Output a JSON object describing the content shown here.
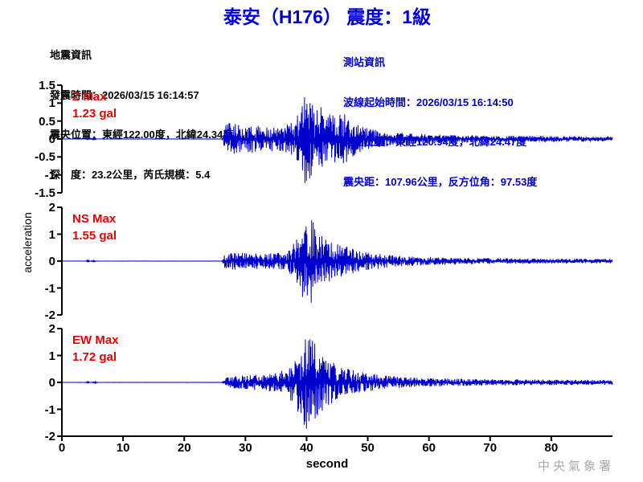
{
  "title": "泰安（H176） 震度：1級",
  "earthquake_info": {
    "heading": "地震資訊",
    "lines": [
      "發震時間：2026/03/15 16:14:57",
      "震央位置：東經122.00度，北緯24.34度",
      "深　度：23.2公里，芮氏規模：5.4"
    ]
  },
  "station_info": {
    "heading": "測站資訊",
    "lines": [
      "波線起始時間：2026/03/15 16:14:50",
      "測站位置：東經120.94度，北緯24.47度",
      "震央距：107.96公里，反方位角：97.53度"
    ]
  },
  "watermark": "中央氣象署",
  "colors": {
    "title_blue": "#0000dd",
    "info_blue": "#0000cc",
    "max_red": "#ee0000",
    "trace_blue": "#0000cc",
    "axis_black": "#000000",
    "watermark_gray": "#a9a9a9"
  },
  "chart_data": {
    "type": "line",
    "title": "泰安（H176） 震度：1級",
    "xlabel": "second",
    "ylabel": "acceleration",
    "x_range": [
      0,
      90
    ],
    "x_ticks": [
      "0",
      "10",
      "20",
      "30",
      "40",
      "50",
      "60",
      "70",
      "80"
    ],
    "grid": false,
    "trace_color": "#0000cc",
    "subplots": [
      {
        "component": "Z",
        "max_label": "Z Max",
        "max_value": "1.23 gal",
        "peak_gal": 1.23,
        "ylim": [
          -1.5,
          1.5
        ],
        "y_ticks": [
          "1.5",
          "1",
          "0.5",
          "0",
          "-0.5",
          "-1",
          "-1.5"
        ],
        "p_onset_s": 26.5,
        "s_peak_s": 39.8,
        "envelope": [
          [
            0,
            0.001
          ],
          [
            3.9,
            0.001
          ],
          [
            4.2,
            0.03
          ],
          [
            4.5,
            0.002
          ],
          [
            5.4,
            0.022
          ],
          [
            5.7,
            0.001
          ],
          [
            26.2,
            0.003
          ],
          [
            26.6,
            0.28
          ],
          [
            27.5,
            0.36
          ],
          [
            29,
            0.33
          ],
          [
            31,
            0.3
          ],
          [
            33.5,
            0.28
          ],
          [
            36,
            0.27
          ],
          [
            38,
            0.4
          ],
          [
            39,
            0.75
          ],
          [
            39.8,
            1.0
          ],
          [
            40.6,
            0.85
          ],
          [
            41.5,
            0.62
          ],
          [
            42.3,
            0.72
          ],
          [
            43.5,
            0.55
          ],
          [
            45,
            0.5
          ],
          [
            46,
            0.58
          ],
          [
            47,
            0.42
          ],
          [
            48.5,
            0.3
          ],
          [
            50,
            0.24
          ],
          [
            52,
            0.18
          ],
          [
            54,
            0.15
          ],
          [
            57,
            0.12
          ],
          [
            60,
            0.1
          ],
          [
            64,
            0.09
          ],
          [
            68,
            0.08
          ],
          [
            72,
            0.07
          ],
          [
            78,
            0.065
          ],
          [
            84,
            0.06
          ],
          [
            90,
            0.055
          ]
        ]
      },
      {
        "component": "NS",
        "max_label": "NS Max",
        "max_value": "1.55 gal",
        "peak_gal": 1.55,
        "ylim": [
          -2,
          2
        ],
        "y_ticks": [
          "2",
          "1",
          "0",
          "-1",
          "-2"
        ],
        "p_onset_s": 26.5,
        "s_peak_s": 40.1,
        "envelope": [
          [
            0,
            0.001
          ],
          [
            3.9,
            0.001
          ],
          [
            4.2,
            0.022
          ],
          [
            4.6,
            0.002
          ],
          [
            5.4,
            0.018
          ],
          [
            5.8,
            0.001
          ],
          [
            26.2,
            0.003
          ],
          [
            26.6,
            0.16
          ],
          [
            28,
            0.2
          ],
          [
            30,
            0.19
          ],
          [
            32.5,
            0.17
          ],
          [
            35,
            0.18
          ],
          [
            37,
            0.25
          ],
          [
            38.3,
            0.55
          ],
          [
            39.2,
            0.85
          ],
          [
            40.1,
            1.0
          ],
          [
            41,
            0.9
          ],
          [
            41.8,
            0.65
          ],
          [
            42.8,
            0.55
          ],
          [
            44,
            0.45
          ],
          [
            45.5,
            0.38
          ],
          [
            47,
            0.3
          ],
          [
            48.5,
            0.24
          ],
          [
            50,
            0.2
          ],
          [
            52.5,
            0.15
          ],
          [
            55,
            0.12
          ],
          [
            58,
            0.1
          ],
          [
            62,
            0.085
          ],
          [
            66,
            0.075
          ],
          [
            70,
            0.065
          ],
          [
            75,
            0.06
          ],
          [
            80,
            0.055
          ],
          [
            85,
            0.05
          ],
          [
            90,
            0.05
          ]
        ]
      },
      {
        "component": "EW",
        "max_label": "EW Max",
        "max_value": "1.72 gal",
        "peak_gal": 1.72,
        "ylim": [
          -2,
          2
        ],
        "y_ticks": [
          "2",
          "1",
          "0",
          "-1",
          "-2"
        ],
        "p_onset_s": 27.0,
        "s_peak_s": 40.2,
        "envelope": [
          [
            0,
            0.001
          ],
          [
            3.9,
            0.001
          ],
          [
            4.2,
            0.02
          ],
          [
            4.6,
            0.002
          ],
          [
            5.5,
            0.016
          ],
          [
            5.9,
            0.001
          ],
          [
            26.2,
            0.003
          ],
          [
            27,
            0.1
          ],
          [
            28.5,
            0.13
          ],
          [
            30.5,
            0.15
          ],
          [
            33,
            0.17
          ],
          [
            35,
            0.2
          ],
          [
            36.5,
            0.26
          ],
          [
            38,
            0.45
          ],
          [
            39.2,
            0.8
          ],
          [
            40.2,
            1.0
          ],
          [
            41,
            0.88
          ],
          [
            42,
            0.66
          ],
          [
            43.2,
            0.52
          ],
          [
            44.5,
            0.42
          ],
          [
            46,
            0.32
          ],
          [
            47.5,
            0.26
          ],
          [
            49,
            0.21
          ],
          [
            51,
            0.17
          ],
          [
            53.5,
            0.13
          ],
          [
            56,
            0.11
          ],
          [
            59,
            0.09
          ],
          [
            63,
            0.08
          ],
          [
            67,
            0.07
          ],
          [
            71,
            0.065
          ],
          [
            76,
            0.06
          ],
          [
            81,
            0.055
          ],
          [
            86,
            0.05
          ],
          [
            90,
            0.05
          ]
        ]
      }
    ]
  }
}
